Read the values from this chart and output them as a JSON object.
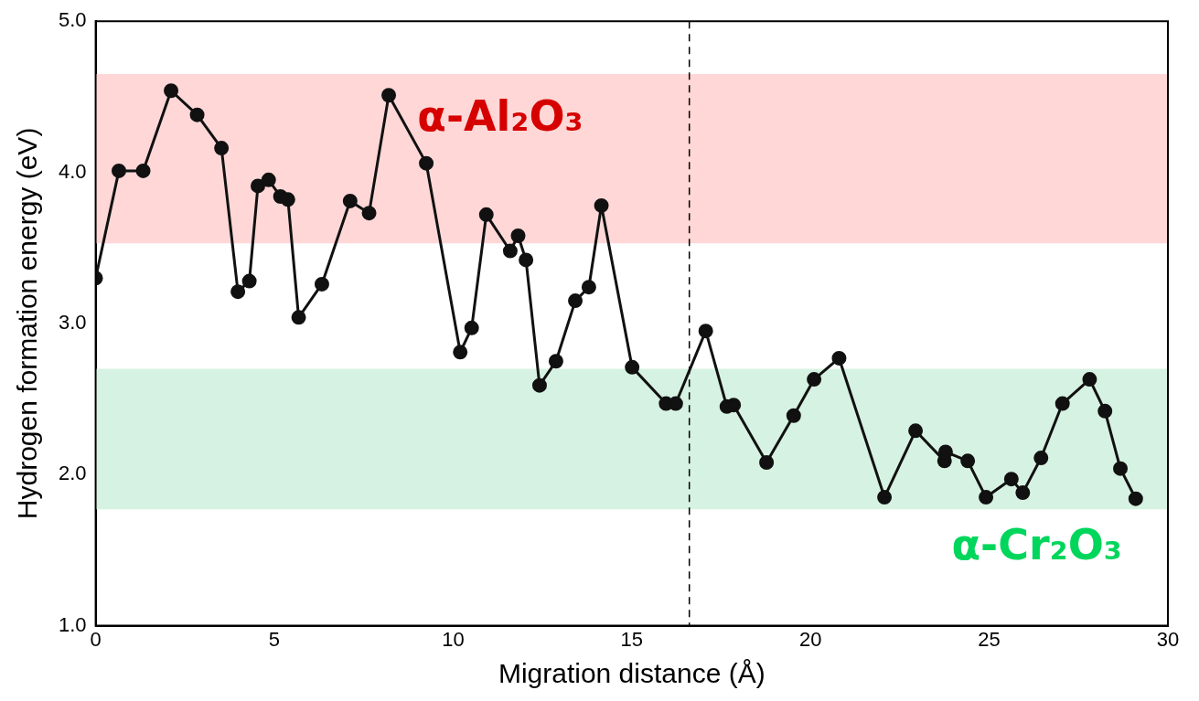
{
  "chart_data": {
    "type": "line",
    "xlabel": "Migration distance (Å)",
    "ylabel": "Hydrogen formation energy (eV)",
    "xlim": [
      0,
      30
    ],
    "xticks": [
      0,
      5,
      10,
      15,
      20,
      25,
      30
    ],
    "ylim": [
      1,
      5
    ],
    "yticks": [
      {
        "value": 1,
        "label": "1.0"
      },
      {
        "value": 2,
        "label": "2.0"
      },
      {
        "value": 3,
        "label": "3.0"
      },
      {
        "value": 4,
        "label": "4.0"
      },
      {
        "value": 5,
        "label": "5.0"
      }
    ],
    "grid": false,
    "legend": false,
    "marker": "circle",
    "line_style": "solid",
    "series": [
      {
        "color": "#111111",
        "x": [
          0,
          0.65,
          1.33,
          2.11,
          2.84,
          3.52,
          3.98,
          4.3,
          4.54,
          4.84,
          5.17,
          5.38,
          5.68,
          6.33,
          7.12,
          7.65,
          8.2,
          9.25,
          10.2,
          10.52,
          10.93,
          11.6,
          11.82,
          12.04,
          12.42,
          12.88,
          13.42,
          13.8,
          14.15,
          15.01,
          15.96,
          16.23,
          17.07,
          17.66,
          17.85,
          18.77,
          19.53,
          20.1,
          20.8,
          22.07,
          22.94,
          23.75,
          23.78,
          24.4,
          24.91,
          25.62,
          25.94,
          26.45,
          27.05,
          27.81,
          28.24,
          28.67,
          29.1
        ],
        "values": [
          3.3,
          4.01,
          4.01,
          4.54,
          4.38,
          4.16,
          3.21,
          3.28,
          3.91,
          3.95,
          3.84,
          3.82,
          3.04,
          3.26,
          3.81,
          3.73,
          4.51,
          4.06,
          2.81,
          2.97,
          3.72,
          3.48,
          3.58,
          3.42,
          2.59,
          2.75,
          3.15,
          3.24,
          3.78,
          2.71,
          2.47,
          2.47,
          2.95,
          2.45,
          2.46,
          2.08,
          2.39,
          2.63,
          2.77,
          1.85,
          2.29,
          2.09,
          2.15,
          2.09,
          1.85,
          1.97,
          1.88,
          2.11,
          2.47,
          2.63,
          2.42,
          2.04,
          1.84
        ]
      }
    ],
    "bands": [
      {
        "axis": "y",
        "from": 3.53,
        "to": 4.65,
        "label": "α-Al₂O₃",
        "color": "#ffd7d7"
      },
      {
        "axis": "y",
        "from": 1.77,
        "to": 2.7,
        "label": "α-Cr₂O₃",
        "color": "#d6f2e2"
      }
    ],
    "ref_lines": [
      {
        "axis": "x",
        "value": 16.61,
        "line_style": "dashed"
      }
    ]
  }
}
